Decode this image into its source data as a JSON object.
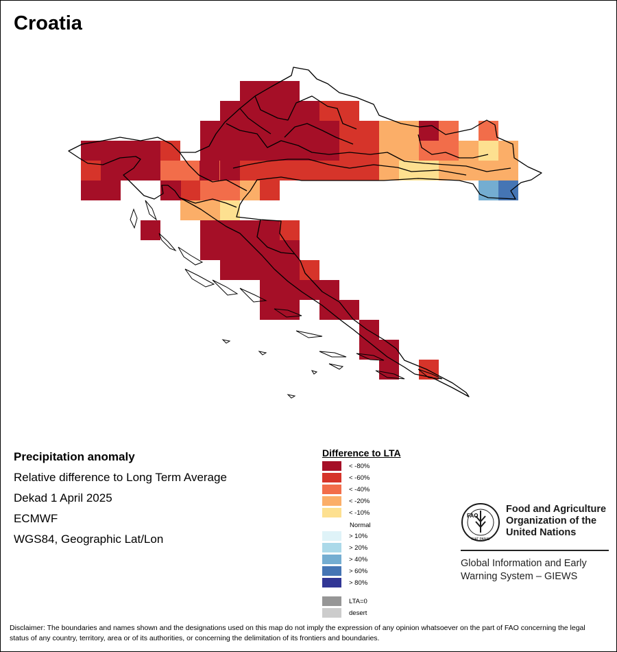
{
  "title": "Croatia",
  "info": {
    "heading": "Precipitation anomaly",
    "line1": "Relative difference to Long Term Average",
    "line2": "Dekad 1 April 2025",
    "line3": "ECMWF",
    "line4": "WGS84, Geographic Lat/Lon"
  },
  "legend": {
    "title": "Difference to LTA",
    "items": [
      {
        "label": "< -80%",
        "color": "#a50f27"
      },
      {
        "label": "< -60%",
        "color": "#d6342a"
      },
      {
        "label": "< -40%",
        "color": "#f26d4a"
      },
      {
        "label": "< -20%",
        "color": "#fbae68"
      },
      {
        "label": "< -10%",
        "color": "#fde090"
      },
      {
        "label": "Normal",
        "color": "#ffffff"
      },
      {
        "label": "> 10%",
        "color": "#dff3f8"
      },
      {
        "label": "> 20%",
        "color": "#abd9e9"
      },
      {
        "label": "> 40%",
        "color": "#74add1"
      },
      {
        "label": "> 60%",
        "color": "#4575b4"
      },
      {
        "label": "> 80%",
        "color": "#313695"
      },
      {
        "label": "LTA=0",
        "color": "#969696"
      },
      {
        "label": "desert",
        "color": "#cccccc"
      }
    ]
  },
  "fao": {
    "name_line1": "Food and Agriculture",
    "name_line2": "Organization of the",
    "name_line3": "United Nations",
    "giews_line1": "Global Information and Early",
    "giews_line2": "Warning System – GIEWS",
    "logo_letters": "FAO",
    "logo_motto": "FIAT PANIS"
  },
  "disclaimer": "Disclaimer: The boundaries and names shown and the designations used on this map do not imply the expression of any opinion whatsoever on the part of FAO concerning the legal status of any country, territory, area or of its authorities, or concerning the delimitation of its frontiers and boundaries."
}
